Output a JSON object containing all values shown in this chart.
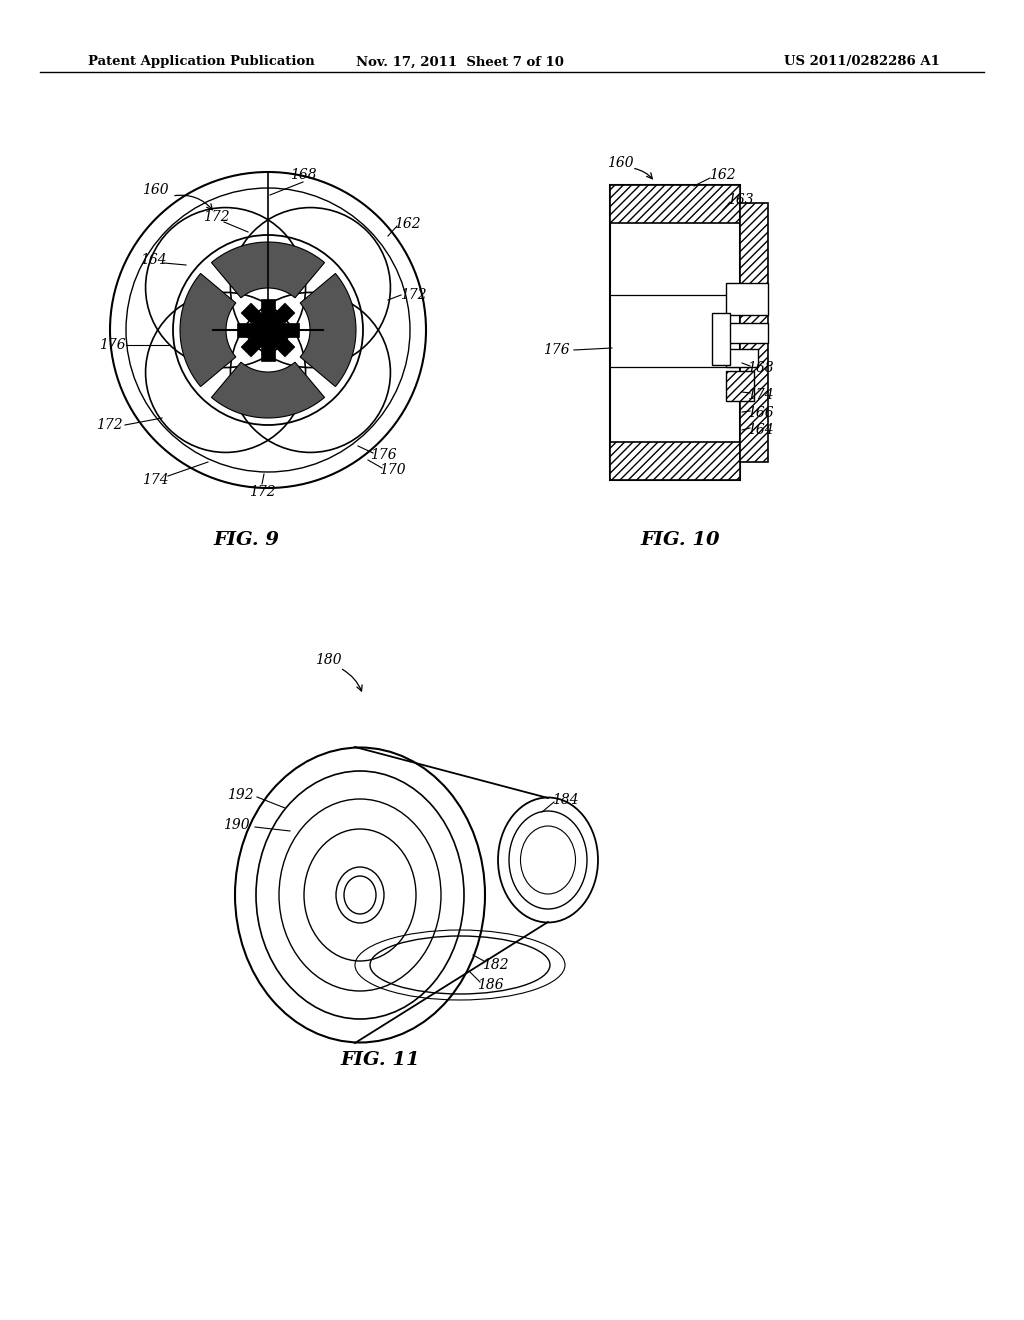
{
  "bg_color": "#ffffff",
  "header_left": "Patent Application Publication",
  "header_mid": "Nov. 17, 2011  Sheet 7 of 10",
  "header_right": "US 2011/0282286 A1",
  "fig9_title": "FIG. 9",
  "fig10_title": "FIG. 10",
  "fig11_title": "FIG. 11"
}
